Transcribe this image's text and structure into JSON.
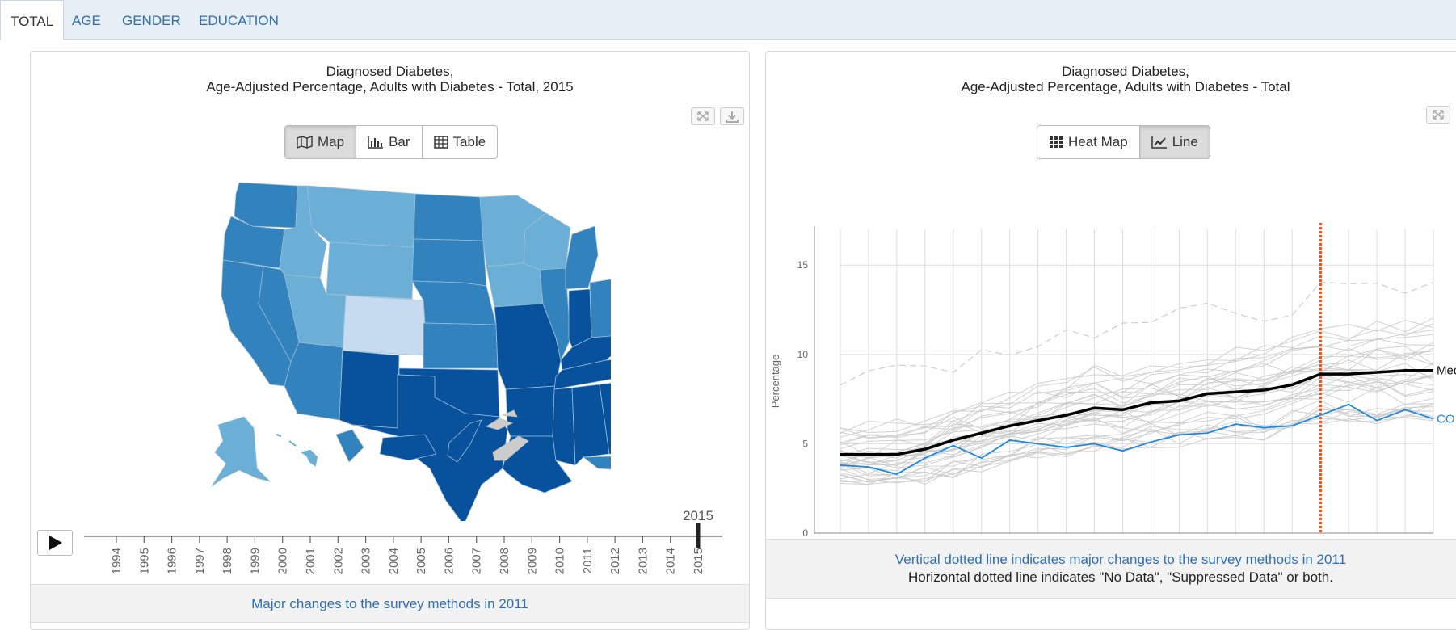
{
  "tabs": [
    {
      "label": "TOTAL",
      "active": true
    },
    {
      "label": "AGE",
      "active": false
    },
    {
      "label": "GENDER",
      "active": false
    },
    {
      "label": "EDUCATION",
      "active": false
    }
  ],
  "map_panel": {
    "title_line1": "Diagnosed Diabetes,",
    "title_line2": "Age-Adjusted Percentage, Adults with Diabetes - Total, 2015",
    "view_buttons": [
      {
        "label": "Map",
        "icon": "map-icon",
        "active": true
      },
      {
        "label": "Bar",
        "icon": "bar-chart-icon",
        "active": false
      },
      {
        "label": "Table",
        "icon": "table-icon",
        "active": false
      }
    ],
    "timeline": {
      "years": [
        "1994",
        "1995",
        "1996",
        "1997",
        "1998",
        "1999",
        "2000",
        "2001",
        "2002",
        "2003",
        "2004",
        "2005",
        "2006",
        "2007",
        "2008",
        "2009",
        "2010",
        "2011",
        "2012",
        "2013",
        "2014",
        "2015"
      ],
      "selected_year": "2015"
    },
    "note": "Major changes to the survey methods in 2011",
    "colors": {
      "darkest": "#08519c",
      "dark": "#3182bd",
      "medium": "#6baed6",
      "light": "#c6dbef",
      "nodata": "#cccccc"
    }
  },
  "line_panel": {
    "title_line1": "Diagnosed Diabetes,",
    "title_line2": "Age-Adjusted Percentage, Adults with Diabetes - Total",
    "view_buttons": [
      {
        "label": "Heat Map",
        "icon": "grid-icon",
        "active": false
      },
      {
        "label": "Line",
        "icon": "line-chart-icon",
        "active": true
      }
    ],
    "note_line1": "Vertical dotted line indicates major changes to the survey methods in 2011",
    "note_line2": "Horizontal dotted line indicates \"No Data\", \"Suppressed Data\" or both."
  },
  "chart_data": {
    "type": "line",
    "ylabel": "Percentage",
    "ylim": [
      0,
      17
    ],
    "yticks": [
      0,
      5,
      10,
      15
    ],
    "x": [
      "1994",
      "1995",
      "1996",
      "1997",
      "1998",
      "1999",
      "2000",
      "2001",
      "2002",
      "2003",
      "2004",
      "2005",
      "2006",
      "2007",
      "2008",
      "2009",
      "2010",
      "2011",
      "2012",
      "2013",
      "2014",
      "2015"
    ],
    "grid": true,
    "series": [
      {
        "name": "Median",
        "label": "Medi",
        "color": "#000000",
        "values": [
          4.4,
          4.4,
          4.4,
          4.7,
          5.2,
          5.6,
          6.0,
          6.3,
          6.6,
          7.0,
          6.9,
          7.3,
          7.4,
          7.8,
          7.9,
          8.0,
          8.3,
          8.9,
          8.9,
          9.0,
          9.1,
          9.1
        ]
      },
      {
        "name": "CO",
        "label": "CO",
        "color": "#1e88e5",
        "values": [
          3.8,
          3.7,
          3.3,
          4.2,
          4.9,
          4.2,
          5.2,
          5.0,
          4.8,
          5.0,
          4.6,
          5.1,
          5.5,
          5.6,
          6.1,
          5.9,
          6.0,
          6.6,
          7.2,
          6.3,
          6.9,
          6.4
        ]
      }
    ],
    "method_change_year": "2011",
    "method_change_color": "#f05a1a"
  }
}
